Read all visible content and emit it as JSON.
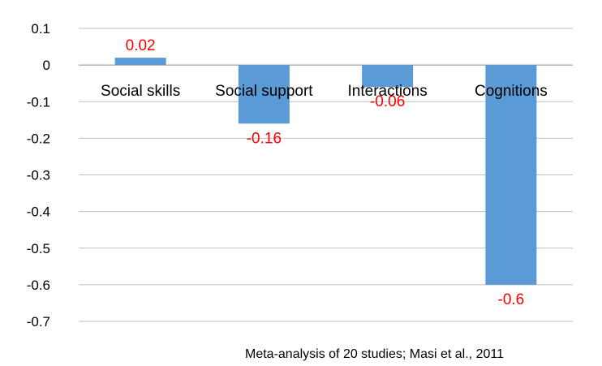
{
  "chart_data": {
    "type": "bar",
    "categories": [
      "Social skills",
      "Social support",
      "Interactions",
      "Cognitions"
    ],
    "values": [
      0.02,
      -0.16,
      -0.06,
      -0.6
    ],
    "data_labels": [
      "0.02",
      "-0.16",
      "-0.06",
      "-0.6"
    ],
    "y_ticks": [
      0.1,
      0,
      -0.1,
      -0.2,
      -0.3,
      -0.4,
      -0.5,
      -0.6,
      -0.7
    ],
    "y_tick_labels": [
      "0.1",
      "0",
      "-0.1",
      "-0.2",
      "-0.3",
      "-0.4",
      "-0.5",
      "-0.6",
      "-0.7"
    ],
    "ylim": [
      -0.7,
      0.1
    ],
    "grid": true,
    "legend": "none",
    "title": "",
    "xlabel": "",
    "ylabel": "",
    "bar_color": "#5b9bd5",
    "label_color": "#ff0000",
    "grid_color": "#bfbfbf"
  },
  "source_note": "Meta-analysis of 20 studies; Masi et al., 2011"
}
